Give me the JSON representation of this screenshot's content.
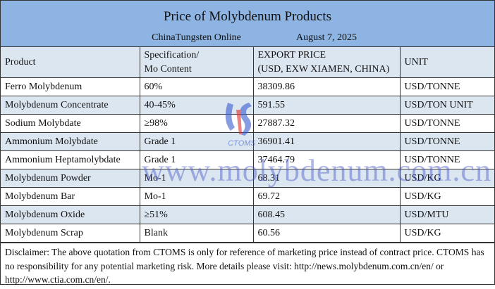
{
  "title": "Price of Molybdenum Products",
  "source": "ChinaTungsten Online",
  "date": "August 7, 2025",
  "headers": {
    "product": "Product",
    "spec1": "Specification/",
    "spec2": "Mo Content",
    "price1": "EXPORT PRICE",
    "price2": "(USD, EXW XIAMEN, CHINA)",
    "unit": "UNIT"
  },
  "rows": [
    {
      "product": "Ferro Molybdenum",
      "spec": "60%",
      "price": "38309.86",
      "unit": "USD/TONNE"
    },
    {
      "product": "Molybdenum Concentrate",
      "spec": "40-45%",
      "price": "591.55",
      "unit": "USD/TON UNIT"
    },
    {
      "product": "Sodium Molybdate",
      "spec": "≥98%",
      "price": "27887.32",
      "unit": "USD/TONNE"
    },
    {
      "product": "Ammonium Molybdate",
      "spec": "Grade 1",
      "price": "36901.41",
      "unit": "USD/TONNE"
    },
    {
      "product": "Ammonium Heptamolybdate",
      "spec": "Grade 1",
      "price": "37464.79",
      "unit": "USD/TONNE"
    },
    {
      "product": "Molybdenum Powder",
      "spec": "Mo-1",
      "price": "68.31",
      "unit": "USD/KG"
    },
    {
      "product": "Molybdenum Bar",
      "spec": "Mo-1",
      "price": "69.72",
      "unit": "USD/KG"
    },
    {
      "product": "Molybdenum Oxide",
      "spec": "≥51%",
      "price": "608.45",
      "unit": "USD/MTU"
    },
    {
      "product": "Molybdenum Scrap",
      "spec": "Blank",
      "price": "60.56",
      "unit": "USD/KG"
    }
  ],
  "disclaimer": "Disclaimer: The above quotation from CTOMS is only for reference of marketing price instead of contract price. CTOMS has no responsibility for any potential marketing risk. More details please visit: http://news.molybdenum.com.cn/en/ or http://www.ctia.com.cn/en/.",
  "watermark": {
    "text": "www.molybdenum.com.cn",
    "logo_text": "CTOMS"
  },
  "colors": {
    "title_band": "#8db4e2",
    "alt_row": "#dce6f1"
  }
}
